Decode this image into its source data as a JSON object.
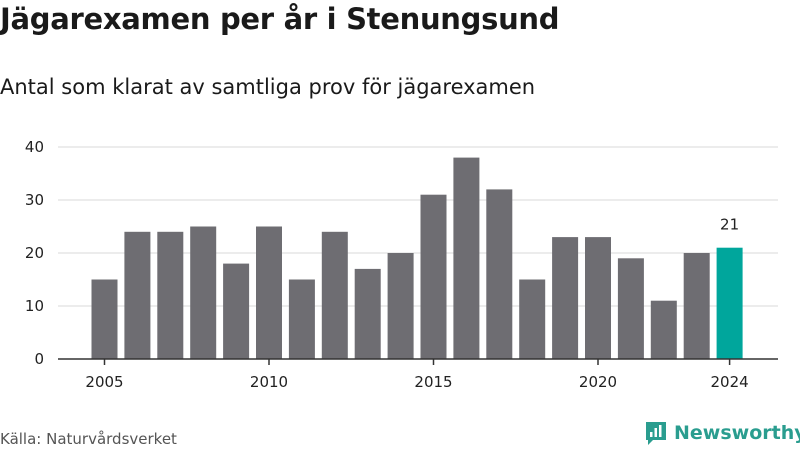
{
  "header": {
    "title": "Jägarexamen per år i Stenungsund",
    "subtitle": "Antal som klarat av samtliga prov för jägarexamen"
  },
  "footer": {
    "source": "Källa: Naturvårdsverket",
    "brand": "Newsworthy"
  },
  "colors": {
    "bar": "#6e6d72",
    "highlight": "#00a69c",
    "grid": "#d9d9d9",
    "axis": "#333333",
    "brand": "#2a9d8f"
  },
  "chart_data": {
    "type": "bar",
    "categories": [
      2005,
      2006,
      2007,
      2008,
      2009,
      2010,
      2011,
      2012,
      2013,
      2014,
      2015,
      2016,
      2017,
      2018,
      2019,
      2020,
      2021,
      2022,
      2023,
      2024
    ],
    "values": [
      15,
      24,
      24,
      25,
      18,
      25,
      15,
      24,
      17,
      20,
      31,
      38,
      32,
      15,
      23,
      23,
      19,
      11,
      20,
      21
    ],
    "highlight_category": 2024,
    "data_labels": [
      {
        "category": 2024,
        "text": "21"
      }
    ],
    "x_tick_labels": [
      "2005",
      "2010",
      "2015",
      "2020",
      "2024"
    ],
    "y_ticks": [
      0,
      10,
      20,
      30,
      40
    ],
    "ylim": [
      0,
      40
    ],
    "grid": true,
    "title": "Jägarexamen per år i Stenungsund",
    "subtitle": "Antal som klarat av samtliga prov för jägarexamen",
    "xlabel": "",
    "ylabel": ""
  }
}
